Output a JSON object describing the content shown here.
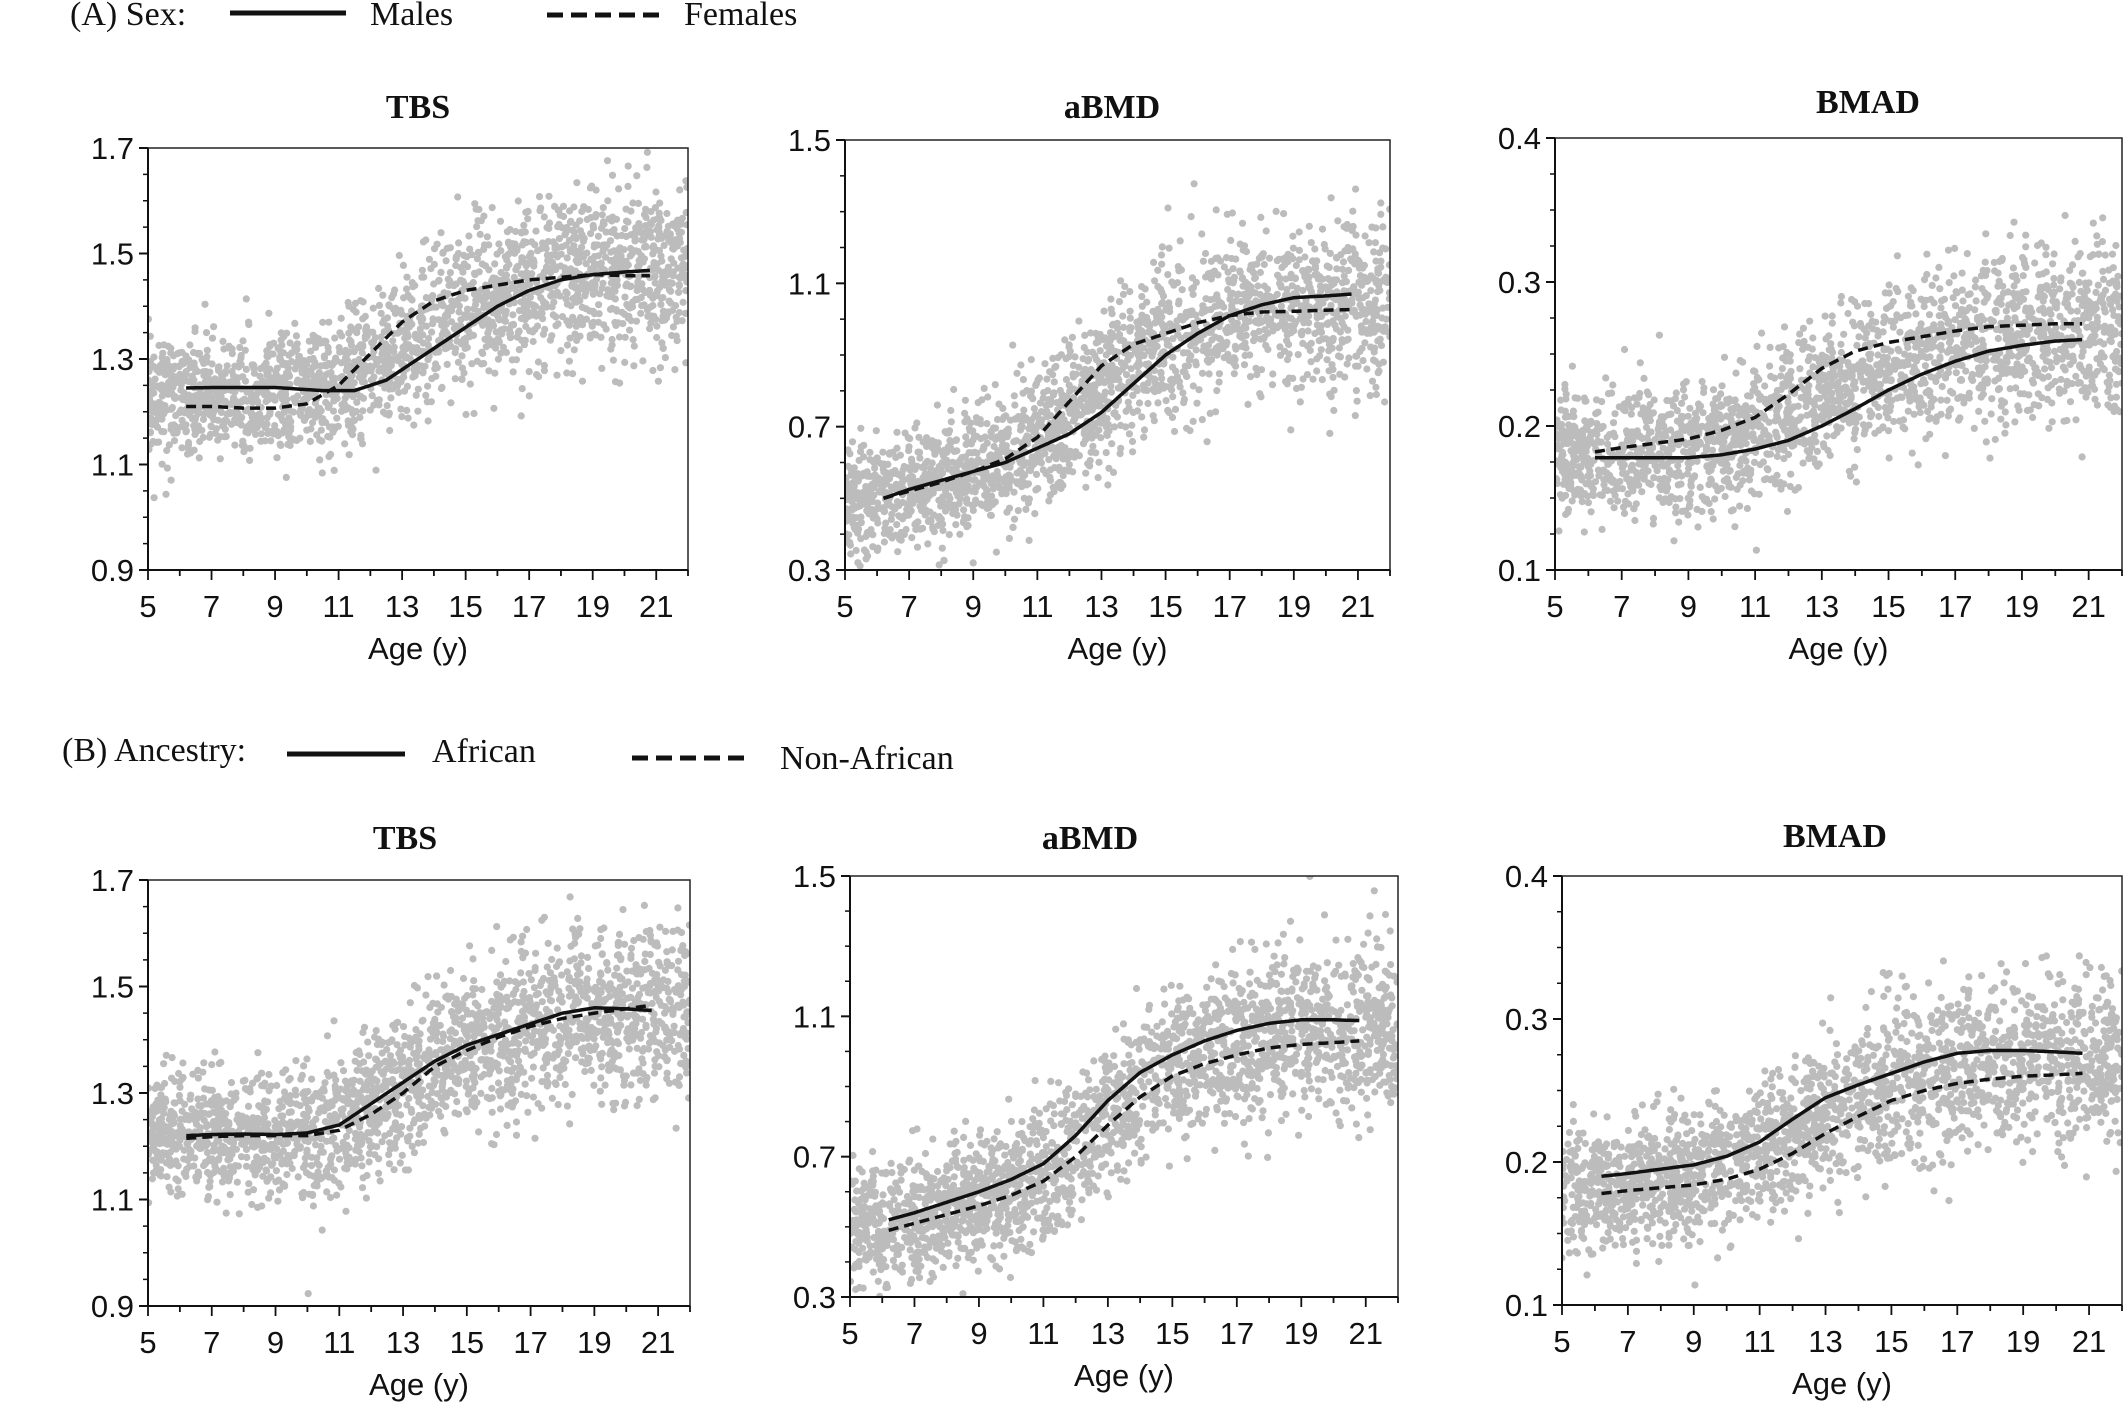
{
  "legends": [
    {
      "label": "(A) Sex:",
      "solid": "Males",
      "dashed": "Females"
    },
    {
      "label": "(B) Ancestry:",
      "solid": "African",
      "dashed": "Non-African"
    }
  ],
  "chart_data": [
    {
      "type": "scatter+line",
      "row": 0,
      "title": "TBS",
      "xlabel": "Age (y)",
      "xlim": [
        5,
        22
      ],
      "xticks": [
        5,
        7,
        9,
        11,
        13,
        15,
        17,
        19,
        21
      ],
      "ylim": [
        0.9,
        1.7
      ],
      "yticks": [
        0.9,
        1.1,
        1.3,
        1.5,
        1.7
      ],
      "ytick_labels": [
        "0.9",
        "1.1",
        "1.3",
        "1.5",
        "1.7"
      ],
      "scatter": {
        "color": "#bcbcbc",
        "points": "dense"
      },
      "series": [
        {
          "name": "Males",
          "style": "solid",
          "x": [
            6.2,
            7,
            9,
            10.5,
            11.5,
            12.5,
            13,
            14,
            15,
            16,
            17,
            18,
            19,
            20,
            20.8
          ],
          "y": [
            1.245,
            1.246,
            1.246,
            1.24,
            1.24,
            1.26,
            1.28,
            1.32,
            1.36,
            1.4,
            1.43,
            1.45,
            1.46,
            1.465,
            1.468
          ]
        },
        {
          "name": "Females",
          "style": "dashed",
          "x": [
            6.2,
            7,
            8,
            9,
            10,
            11,
            12,
            13,
            14,
            15,
            16,
            17,
            18,
            19,
            20,
            20.8
          ],
          "y": [
            1.21,
            1.21,
            1.207,
            1.207,
            1.215,
            1.25,
            1.31,
            1.37,
            1.41,
            1.43,
            1.44,
            1.45,
            1.455,
            1.46,
            1.458,
            1.458
          ]
        }
      ]
    },
    {
      "type": "scatter+line",
      "row": 0,
      "title": "aBMD",
      "xlabel": "Age (y)",
      "xlim": [
        5,
        22
      ],
      "xticks": [
        5,
        7,
        9,
        11,
        13,
        15,
        17,
        19,
        21
      ],
      "ylim": [
        0.3,
        1.5
      ],
      "yticks": [
        0.3,
        0.7,
        1.1,
        1.5
      ],
      "ytick_labels": [
        "0.3",
        "0.7",
        "1.1",
        "1.5"
      ],
      "scatter": {
        "color": "#bcbcbc",
        "points": "dense"
      },
      "series": [
        {
          "name": "Males",
          "style": "solid",
          "x": [
            6.2,
            7,
            8,
            9,
            10,
            11,
            12,
            13,
            14,
            15,
            16,
            17,
            18,
            19,
            20,
            20.8
          ],
          "y": [
            0.5,
            0.525,
            0.55,
            0.575,
            0.6,
            0.64,
            0.68,
            0.74,
            0.82,
            0.9,
            0.96,
            1.01,
            1.04,
            1.06,
            1.065,
            1.07
          ]
        },
        {
          "name": "Females",
          "style": "dashed",
          "x": [
            6.2,
            7,
            8,
            9,
            10,
            11,
            12,
            13,
            14,
            15,
            16,
            17,
            18,
            19,
            20,
            20.8
          ],
          "y": [
            0.5,
            0.52,
            0.545,
            0.575,
            0.61,
            0.67,
            0.77,
            0.87,
            0.93,
            0.96,
            0.99,
            1.01,
            1.02,
            1.022,
            1.025,
            1.027
          ]
        }
      ]
    },
    {
      "type": "scatter+line",
      "row": 0,
      "title": "BMAD",
      "xlabel": "Age (y)",
      "xlim": [
        5,
        22
      ],
      "xticks": [
        5,
        7,
        9,
        11,
        13,
        15,
        17,
        19,
        21
      ],
      "ylim": [
        0.1,
        0.4
      ],
      "yticks": [
        0.1,
        0.2,
        0.3,
        0.4
      ],
      "ytick_labels": [
        "0.1",
        "0.2",
        "0.3",
        "0.4"
      ],
      "scatter": {
        "color": "#bcbcbc",
        "points": "dense"
      },
      "series": [
        {
          "name": "Males",
          "style": "solid",
          "x": [
            6.2,
            7,
            8,
            9,
            10,
            11,
            12,
            13,
            14,
            15,
            16,
            17,
            18,
            19,
            20,
            20.8
          ],
          "y": [
            0.178,
            0.178,
            0.178,
            0.178,
            0.18,
            0.184,
            0.19,
            0.2,
            0.212,
            0.225,
            0.236,
            0.245,
            0.252,
            0.256,
            0.259,
            0.26
          ]
        },
        {
          "name": "Females",
          "style": "dashed",
          "x": [
            6.2,
            7,
            8,
            9,
            10,
            11,
            12,
            13,
            14,
            15,
            16,
            17,
            18,
            19,
            20,
            20.8
          ],
          "y": [
            0.182,
            0.185,
            0.188,
            0.191,
            0.197,
            0.206,
            0.222,
            0.24,
            0.252,
            0.258,
            0.262,
            0.266,
            0.269,
            0.27,
            0.271,
            0.271
          ]
        }
      ]
    },
    {
      "type": "scatter+line",
      "row": 1,
      "title": "TBS",
      "xlabel": "Age (y)",
      "xlim": [
        5,
        22
      ],
      "xticks": [
        5,
        7,
        9,
        11,
        13,
        15,
        17,
        19,
        21
      ],
      "ylim": [
        0.9,
        1.7
      ],
      "yticks": [
        0.9,
        1.1,
        1.3,
        1.5,
        1.7
      ],
      "ytick_labels": [
        "0.9",
        "1.1",
        "1.3",
        "1.5",
        "1.7"
      ],
      "scatter": {
        "color": "#bcbcbc",
        "points": "dense"
      },
      "series": [
        {
          "name": "African",
          "style": "solid",
          "x": [
            6.2,
            7,
            8,
            9,
            10,
            11,
            12,
            13,
            14,
            15,
            16,
            17,
            18,
            19,
            20,
            20.8
          ],
          "y": [
            1.22,
            1.222,
            1.223,
            1.222,
            1.225,
            1.24,
            1.28,
            1.32,
            1.36,
            1.39,
            1.41,
            1.43,
            1.45,
            1.46,
            1.458,
            1.455
          ]
        },
        {
          "name": "Non-African",
          "style": "dashed",
          "x": [
            6.2,
            7,
            8,
            9,
            10,
            11,
            12,
            13,
            14,
            15,
            16,
            17,
            18,
            19,
            20,
            20.8
          ],
          "y": [
            1.215,
            1.218,
            1.22,
            1.22,
            1.22,
            1.23,
            1.26,
            1.3,
            1.35,
            1.38,
            1.405,
            1.425,
            1.44,
            1.45,
            1.458,
            1.465
          ]
        }
      ]
    },
    {
      "type": "scatter+line",
      "row": 1,
      "title": "aBMD",
      "xlabel": "Age (y)",
      "xlim": [
        5,
        22
      ],
      "xticks": [
        5,
        7,
        9,
        11,
        13,
        15,
        17,
        19,
        21
      ],
      "ylim": [
        0.3,
        1.5
      ],
      "yticks": [
        0.3,
        0.7,
        1.1,
        1.5
      ],
      "ytick_labels": [
        "0.3",
        "0.7",
        "1.1",
        "1.5"
      ],
      "scatter": {
        "color": "#bcbcbc",
        "points": "dense"
      },
      "series": [
        {
          "name": "African",
          "style": "solid",
          "x": [
            6.2,
            7,
            8,
            9,
            10,
            11,
            12,
            13,
            14,
            15,
            16,
            17,
            18,
            19,
            20,
            20.8
          ],
          "y": [
            0.52,
            0.54,
            0.57,
            0.6,
            0.635,
            0.68,
            0.76,
            0.86,
            0.94,
            0.99,
            1.03,
            1.06,
            1.08,
            1.09,
            1.09,
            1.088
          ]
        },
        {
          "name": "Non-African",
          "style": "dashed",
          "x": [
            6.2,
            7,
            8,
            9,
            10,
            11,
            12,
            13,
            14,
            15,
            16,
            17,
            18,
            19,
            20,
            20.8
          ],
          "y": [
            0.49,
            0.51,
            0.535,
            0.56,
            0.59,
            0.63,
            0.7,
            0.79,
            0.87,
            0.93,
            0.965,
            0.99,
            1.01,
            1.02,
            1.025,
            1.03
          ]
        }
      ]
    },
    {
      "type": "scatter+line",
      "row": 1,
      "title": "BMAD",
      "xlabel": "Age (y)",
      "xlim": [
        5,
        22
      ],
      "xticks": [
        5,
        7,
        9,
        11,
        13,
        15,
        17,
        19,
        21
      ],
      "ylim": [
        0.1,
        0.4
      ],
      "yticks": [
        0.1,
        0.2,
        0.3,
        0.4
      ],
      "ytick_labels": [
        "0.1",
        "0.2",
        "0.3",
        "0.4"
      ],
      "scatter": {
        "color": "#bcbcbc",
        "points": "dense"
      },
      "series": [
        {
          "name": "African",
          "style": "solid",
          "x": [
            6.2,
            7,
            8,
            9,
            10,
            11,
            12,
            13,
            14,
            15,
            16,
            17,
            18,
            19,
            20,
            20.8
          ],
          "y": [
            0.19,
            0.192,
            0.195,
            0.198,
            0.204,
            0.214,
            0.23,
            0.245,
            0.254,
            0.262,
            0.27,
            0.276,
            0.278,
            0.278,
            0.277,
            0.276
          ]
        },
        {
          "name": "Non-African",
          "style": "dashed",
          "x": [
            6.2,
            7,
            8,
            9,
            10,
            11,
            12,
            13,
            14,
            15,
            16,
            17,
            18,
            19,
            20,
            20.8
          ],
          "y": [
            0.178,
            0.18,
            0.182,
            0.184,
            0.188,
            0.195,
            0.206,
            0.22,
            0.232,
            0.243,
            0.25,
            0.255,
            0.258,
            0.26,
            0.261,
            0.262
          ]
        }
      ]
    }
  ]
}
